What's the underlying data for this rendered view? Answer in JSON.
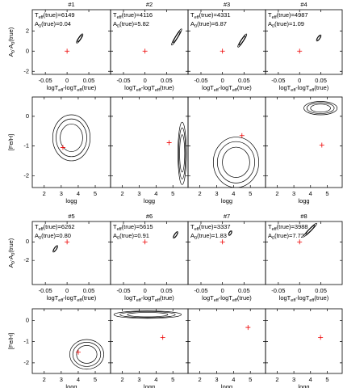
{
  "chart_data": [
    {
      "type": "contour",
      "title": "#1",
      "annotations": [
        "Teff(true)=6149",
        "A0(true)=0.04"
      ],
      "xlabel": "logTeff-logTeff(true)",
      "ylabel": "A0-A0(true)",
      "xlim": [
        -0.08,
        0.1
      ],
      "ylim": [
        -2.3,
        4.1
      ],
      "xticks": [
        -0.05,
        0,
        0.05
      ],
      "yticks": [
        -2,
        0,
        2
      ],
      "truth": [
        0,
        0
      ],
      "contours": [
        {
          "x": [
            0.022,
            0.036
          ],
          "y": [
            0.8,
            1.7
          ]
        }
      ]
    },
    {
      "type": "contour",
      "title": "#2",
      "annotations": [
        "Teff(true)=4116",
        "A0(true)=5.82"
      ],
      "xlabel": "logTeff-logTeff(true)",
      "xlim": [
        -0.08,
        0.1
      ],
      "ylim": [
        -2.3,
        4.1
      ],
      "xticks": [
        -0.05,
        0,
        0.05
      ],
      "yticks": [
        -2,
        0,
        2
      ],
      "truth": [
        0,
        0
      ],
      "contours": [
        {
          "x": [
            0.062,
            0.085
          ],
          "y": [
            0.6,
            2.2
          ]
        }
      ]
    },
    {
      "type": "contour",
      "title": "#3",
      "annotations": [
        "Teff(true)=4331",
        "A0(true)=6.87"
      ],
      "xlabel": "logTeff-logTeff(true)",
      "xlim": [
        -0.08,
        0.1
      ],
      "ylim": [
        -2.3,
        4.1
      ],
      "xticks": [
        -0.05,
        0,
        0.05
      ],
      "yticks": [
        -2,
        0,
        2
      ],
      "truth": [
        0,
        0
      ],
      "contours": [
        {
          "x": [
            0.036,
            0.056
          ],
          "y": [
            0.4,
            1.7
          ]
        }
      ]
    },
    {
      "type": "contour",
      "title": "#4",
      "annotations": [
        "Teff(true)=4987",
        "A0(true)=1.09"
      ],
      "xlabel": "logTeff-logTeff(true)",
      "xlim": [
        -0.08,
        0.1
      ],
      "ylim": [
        -2.3,
        4.1
      ],
      "xticks": [
        -0.05,
        0,
        0.05
      ],
      "yticks": [
        -2,
        0,
        2
      ],
      "truth": [
        0,
        0
      ],
      "contours": [
        {
          "x": [
            0.04,
            0.05
          ],
          "y": [
            1.0,
            1.6
          ]
        }
      ]
    },
    {
      "type": "contour",
      "xlabel": "logg",
      "ylabel": "[Fe/H]",
      "xlim": [
        1.3,
        5.9
      ],
      "ylim": [
        -2.4,
        0.65
      ],
      "xticks": [
        2,
        3,
        4,
        5
      ],
      "yticks": [
        -2,
        -1,
        0
      ],
      "truth": [
        3.1,
        -1.05
      ],
      "contours": [
        {
          "x": [
            2.5,
            4.7
          ],
          "y": [
            -1.5,
            0.05
          ]
        }
      ]
    },
    {
      "type": "contour",
      "xlabel": "logg",
      "xlim": [
        1.3,
        5.9
      ],
      "ylim": [
        -2.4,
        0.65
      ],
      "xticks": [
        2,
        3,
        4,
        5
      ],
      "yticks": [
        -2,
        -1,
        0
      ],
      "truth": [
        4.78,
        -0.89
      ],
      "contours": [
        {
          "x": [
            5.3,
            5.8
          ],
          "y": [
            -2.3,
            -0.2
          ]
        }
      ]
    },
    {
      "type": "contour",
      "xlabel": "logg",
      "xlim": [
        1.3,
        5.9
      ],
      "ylim": [
        -2.4,
        0.65
      ],
      "xticks": [
        2,
        3,
        4,
        5
      ],
      "yticks": [
        -2,
        -1,
        0
      ],
      "truth": [
        4.5,
        -0.65
      ],
      "contours": [
        {
          "x": [
            2.8,
            5.5
          ],
          "y": [
            -2.4,
            -0.7
          ]
        }
      ]
    },
    {
      "type": "contour",
      "xlabel": "logg",
      "xlim": [
        1.3,
        5.9
      ],
      "ylim": [
        -2.4,
        0.65
      ],
      "xticks": [
        2,
        3,
        4,
        5
      ],
      "yticks": [
        -2,
        -1,
        0
      ],
      "truth": [
        4.68,
        -0.97
      ],
      "contours": [
        {
          "x": [
            3.6,
            5.6
          ],
          "y": [
            0.05,
            0.5
          ]
        }
      ]
    },
    {
      "type": "contour",
      "title": "#5",
      "annotations": [
        "Teff(true)=6262",
        "A0(true)=0.80"
      ],
      "xlabel": "logTeff-logTeff(true)",
      "ylabel": "A0-A0(true)",
      "xlim": [
        -0.08,
        0.1
      ],
      "ylim": [
        -4.6,
        2.2
      ],
      "xticks": [
        -0.05,
        0,
        0.05
      ],
      "yticks": [
        -2,
        0
      ],
      "truth": [
        0,
        0
      ],
      "contours": [
        {
          "x": [
            -0.032,
            -0.022
          ],
          "y": [
            -1.1,
            -0.4
          ]
        }
      ]
    },
    {
      "type": "contour",
      "title": "#6",
      "annotations": [
        "Teff(true)=5615",
        "A0(true)=0.91"
      ],
      "xlabel": "logTeff-logTeff(true)",
      "xlim": [
        -0.08,
        0.1
      ],
      "ylim": [
        -4.6,
        2.2
      ],
      "xticks": [
        -0.05,
        0,
        0.05
      ],
      "yticks": [
        -2,
        0
      ],
      "truth": [
        0,
        0
      ],
      "contours": [
        {
          "x": [
            0.066,
            0.076
          ],
          "y": [
            0.4,
            1.1
          ]
        }
      ]
    },
    {
      "type": "contour",
      "title": "#7",
      "annotations": [
        "Teff(true)=3337",
        "A0(true)=1.83"
      ],
      "xlabel": "logTeff-logTeff(true)",
      "xlim": [
        -0.08,
        0.1
      ],
      "ylim": [
        -4.6,
        2.2
      ],
      "xticks": [
        -0.05,
        0,
        0.05
      ],
      "yticks": [
        -2,
        0
      ],
      "truth": [
        0,
        0
      ],
      "contours": [
        {
          "x": [
            0.015,
            0.021
          ],
          "y": [
            0.7,
            1.2
          ]
        }
      ]
    },
    {
      "type": "contour",
      "title": "#8",
      "annotations": [
        "Teff(true)=3988",
        "A0(true)=7.72"
      ],
      "xlabel": "logTeff-logTeff(true)",
      "xlim": [
        -0.08,
        0.1
      ],
      "ylim": [
        -4.6,
        2.2
      ],
      "xticks": [
        -0.05,
        0,
        0.05
      ],
      "yticks": [
        -2,
        0
      ],
      "truth": [
        0,
        0
      ],
      "contours": [
        {
          "x": [
            0.01,
            0.04
          ],
          "y": [
            0.6,
            2.0
          ]
        }
      ]
    },
    {
      "type": "contour",
      "xlabel": "logg",
      "ylabel": "[Fe/H]",
      "xlim": [
        1.3,
        5.9
      ],
      "ylim": [
        -2.5,
        0.55
      ],
      "xticks": [
        2,
        3,
        4,
        5
      ],
      "yticks": [
        -2,
        -1,
        0
      ],
      "truth": [
        4.0,
        -1.5
      ],
      "contours": [
        {
          "x": [
            3.5,
            5.5
          ],
          "y": [
            -2.3,
            -0.9
          ]
        }
      ]
    },
    {
      "type": "contour",
      "xlabel": "logg",
      "xlim": [
        1.3,
        5.9
      ],
      "ylim": [
        -2.5,
        0.55
      ],
      "xticks": [
        2,
        3,
        4,
        5
      ],
      "yticks": [
        -2,
        -1,
        0
      ],
      "truth": [
        4.4,
        -0.8
      ],
      "contours": [
        {
          "x": [
            1.5,
            5.5
          ],
          "y": [
            0.1,
            0.45
          ]
        }
      ]
    },
    {
      "type": "contour",
      "xlabel": "logg",
      "xlim": [
        1.3,
        5.9
      ],
      "ylim": [
        -2.5,
        0.55
      ],
      "xticks": [
        2,
        3,
        4,
        5
      ],
      "yticks": [
        -2,
        -1,
        0
      ],
      "truth": [
        4.86,
        -0.33
      ],
      "contours": []
    },
    {
      "type": "contour",
      "xlabel": "logg",
      "xlim": [
        1.3,
        5.9
      ],
      "ylim": [
        -2.5,
        0.55
      ],
      "xticks": [
        2,
        3,
        4,
        5
      ],
      "yticks": [
        -2,
        -1,
        0
      ],
      "truth": [
        4.6,
        -0.8
      ],
      "contours": []
    }
  ]
}
